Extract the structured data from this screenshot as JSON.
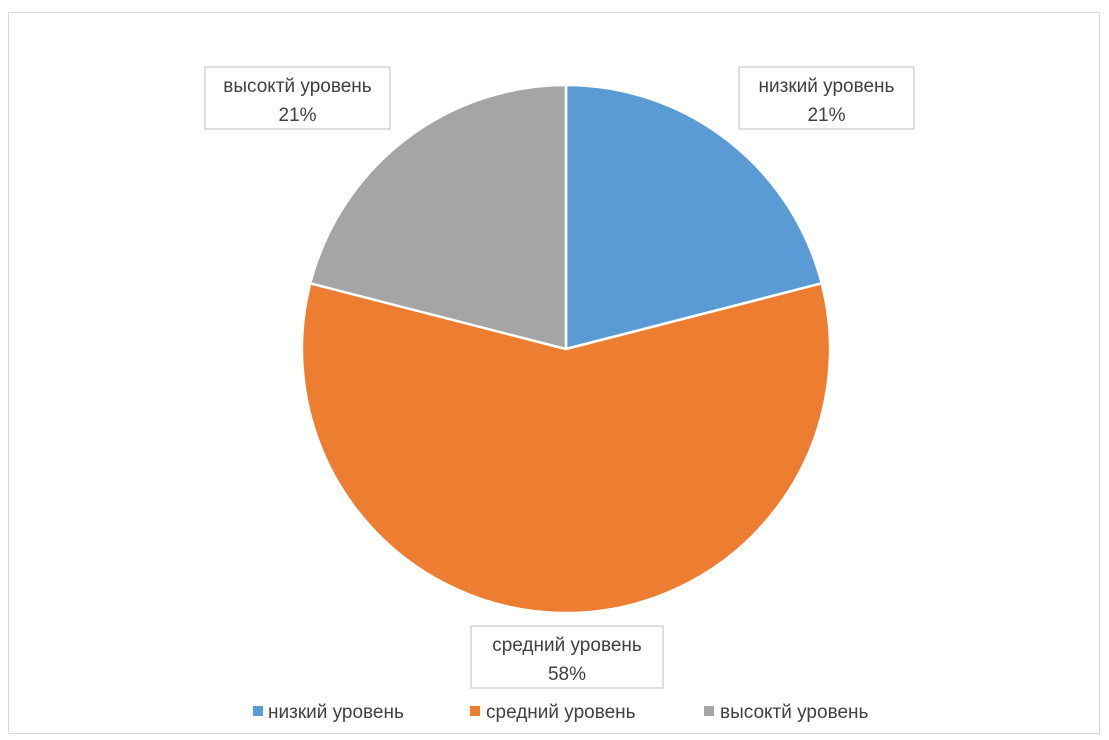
{
  "chart_data": {
    "type": "pie",
    "categories": [
      "низкий уровень",
      "средний уровень",
      "высоктй уровень"
    ],
    "values": [
      21,
      58,
      21
    ],
    "value_labels": [
      "21%",
      "58%",
      "21%"
    ],
    "colors": [
      "#5b9bd5",
      "#ed7d31",
      "#a5a5a5"
    ],
    "legend_position": "bottom",
    "data_labels": "outside-with-border",
    "start_angle_deg": 0,
    "direction": "clockwise"
  }
}
